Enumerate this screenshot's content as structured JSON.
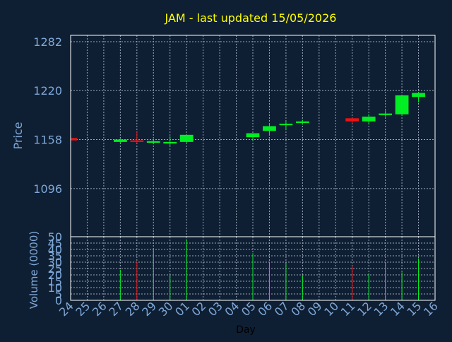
{
  "colors": {
    "background": "#0f1f33",
    "title": "#ffff00",
    "axis_text": "#7fa8d8",
    "day_label": "#000000",
    "grid": "#9aa6b8",
    "up": "#00ee22",
    "down": "#ee1111"
  },
  "chart_data": [
    {
      "type": "candlestick",
      "title": "JAM - last updated 15/05/2026",
      "ylabel": "Price",
      "xlabel": "",
      "ylim": [
        1035,
        1290
      ],
      "yticks": [
        1096,
        1158,
        1220,
        1282
      ],
      "grid": true,
      "categories": [
        "24",
        "25",
        "26",
        "27",
        "28",
        "29",
        "30",
        "01",
        "02",
        "03",
        "04",
        "05",
        "06",
        "07",
        "08",
        "09",
        "10",
        "11",
        "12",
        "13",
        "14",
        "15",
        "16"
      ],
      "candles": [
        {
          "day": "24",
          "open": 1160,
          "high": 1162,
          "low": 1156,
          "close": 1157
        },
        {
          "day": "27",
          "open": 1155,
          "high": 1159,
          "low": 1154,
          "close": 1158
        },
        {
          "day": "28",
          "open": 1157,
          "high": 1169,
          "low": 1153,
          "close": 1155
        },
        {
          "day": "29",
          "open": 1154,
          "high": 1158,
          "low": 1153,
          "close": 1156
        },
        {
          "day": "30",
          "open": 1153,
          "high": 1162,
          "low": 1150,
          "close": 1155
        },
        {
          "day": "01",
          "open": 1155,
          "high": 1164,
          "low": 1154,
          "close": 1164
        },
        {
          "day": "05",
          "open": 1161,
          "high": 1166,
          "low": 1157,
          "close": 1166
        },
        {
          "day": "06",
          "open": 1169,
          "high": 1179,
          "low": 1163,
          "close": 1175
        },
        {
          "day": "07",
          "open": 1177,
          "high": 1182,
          "low": 1170,
          "close": 1178
        },
        {
          "day": "08",
          "open": 1179,
          "high": 1183,
          "low": 1177,
          "close": 1181
        },
        {
          "day": "11",
          "open": 1185,
          "high": 1186,
          "low": 1178,
          "close": 1181
        },
        {
          "day": "12",
          "open": 1181,
          "high": 1190,
          "low": 1177,
          "close": 1187
        },
        {
          "day": "13",
          "open": 1189,
          "high": 1195,
          "low": 1187,
          "close": 1191
        },
        {
          "day": "14",
          "open": 1190,
          "high": 1214,
          "low": 1189,
          "close": 1214
        },
        {
          "day": "15",
          "open": 1212,
          "high": 1218,
          "low": 1205,
          "close": 1217
        }
      ]
    },
    {
      "type": "bar",
      "ylabel": "Volume (0000)",
      "xlabel": "Day",
      "ylim": [
        0,
        50
      ],
      "yticks": [
        0,
        5,
        10,
        15,
        20,
        25,
        30,
        35,
        40,
        45,
        50
      ],
      "categories": [
        "24",
        "25",
        "26",
        "27",
        "28",
        "29",
        "30",
        "01",
        "02",
        "03",
        "04",
        "05",
        "06",
        "07",
        "08",
        "09",
        "10",
        "11",
        "12",
        "13",
        "14",
        "15",
        "16"
      ],
      "bars": [
        {
          "day": "27",
          "value": 24,
          "direction": "up"
        },
        {
          "day": "28",
          "value": 30,
          "direction": "down"
        },
        {
          "day": "29",
          "value": 40,
          "direction": "up"
        },
        {
          "day": "30",
          "value": 20,
          "direction": "up"
        },
        {
          "day": "01",
          "value": 48,
          "direction": "up"
        },
        {
          "day": "05",
          "value": 37,
          "direction": "up"
        },
        {
          "day": "06",
          "value": 30,
          "direction": "up"
        },
        {
          "day": "07",
          "value": 29,
          "direction": "up"
        },
        {
          "day": "08",
          "value": 20,
          "direction": "up"
        },
        {
          "day": "11",
          "value": 27,
          "direction": "down"
        },
        {
          "day": "12",
          "value": 21,
          "direction": "up"
        },
        {
          "day": "13",
          "value": 30,
          "direction": "up"
        },
        {
          "day": "14",
          "value": 22,
          "direction": "up"
        },
        {
          "day": "15",
          "value": 33,
          "direction": "up"
        }
      ]
    }
  ]
}
